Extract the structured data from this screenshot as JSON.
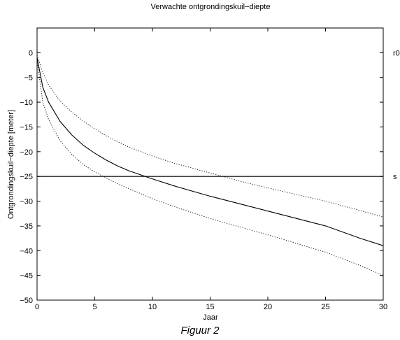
{
  "chart_data": {
    "type": "line",
    "title": "Verwachte ontgrondingskuil−diepte",
    "xlabel": "Jaar",
    "ylabel": "Ontgrondingskuil−diepte [meter]",
    "xlim": [
      0,
      30
    ],
    "ylim": [
      -50,
      5
    ],
    "xticks": [
      0,
      5,
      10,
      15,
      20,
      25,
      30
    ],
    "yticks": [
      0,
      -5,
      -10,
      -15,
      -20,
      -25,
      -30,
      -35,
      -40,
      -45,
      -50
    ],
    "xtick_labels": [
      "0",
      "5",
      "10",
      "15",
      "20",
      "25",
      "30"
    ],
    "ytick_labels": [
      "0",
      "−5",
      "−10",
      "−15",
      "−20",
      "−25",
      "−30",
      "−35",
      "−40",
      "−45",
      "−50"
    ],
    "series": [
      {
        "style": "solid",
        "color": "#000000",
        "x": [
          0,
          0.5,
          1,
          2,
          3,
          4,
          5,
          6,
          7,
          8,
          10,
          12,
          15,
          18,
          20,
          22,
          25,
          28,
          30
        ],
        "y": [
          -1,
          -7,
          -10,
          -13.9,
          -16.6,
          -18.7,
          -20.3,
          -21.7,
          -22.9,
          -23.9,
          -25.5,
          -27,
          -29,
          -30.8,
          -32,
          -33.2,
          -35,
          -37.5,
          -39
        ]
      },
      {
        "style": "dotted",
        "color": "#000000",
        "x": [
          0,
          0.5,
          1,
          2,
          3,
          4,
          5,
          6,
          7,
          8,
          10,
          12,
          15,
          18,
          20,
          22,
          25,
          28,
          30
        ],
        "y": [
          -0.5,
          -4,
          -6.5,
          -9.8,
          -12,
          -13.8,
          -15.4,
          -16.8,
          -18,
          -19.1,
          -20.9,
          -22.4,
          -24.3,
          -26.2,
          -27.3,
          -28.4,
          -30,
          -31.9,
          -33.2
        ]
      },
      {
        "style": "dotted",
        "color": "#000000",
        "x": [
          0,
          0.5,
          1,
          2,
          3,
          4,
          5,
          6,
          7,
          8,
          10,
          12,
          15,
          18,
          20,
          22,
          25,
          28,
          30
        ],
        "y": [
          -1.5,
          -10,
          -13.5,
          -17.8,
          -20.5,
          -22.6,
          -24.1,
          -25.3,
          -26.5,
          -27.5,
          -29.5,
          -31.2,
          -33.5,
          -35.5,
          -36.8,
          -38.2,
          -40.3,
          -43,
          -45
        ]
      },
      {
        "style": "solid",
        "color": "#000000",
        "x": [
          0,
          30
        ],
        "y": [
          -25,
          -25
        ]
      }
    ],
    "right_labels": [
      {
        "text": "r0",
        "y": 0
      },
      {
        "text": "s",
        "y": -25
      }
    ],
    "grid": false
  },
  "caption": "Figuur 2"
}
